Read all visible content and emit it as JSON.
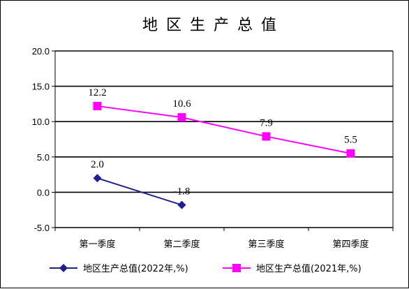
{
  "chart_data": {
    "type": "line",
    "title": "地区生产总值",
    "categories": [
      "第一季度",
      "第二季度",
      "第三季度",
      "第四季度"
    ],
    "ylim": [
      -5.0,
      20.0
    ],
    "yticks": [
      "20.0",
      "15.0",
      "10.0",
      "5.0",
      "0.0",
      "-5.0"
    ],
    "ytick_values": [
      20,
      15,
      10,
      5,
      0,
      -5
    ],
    "grid": "horizontal",
    "legend_position": "bottom",
    "series": [
      {
        "name": "地区生产总值(2022年,%)",
        "values": [
          2.0,
          -1.8,
          null,
          null
        ],
        "labels": [
          "2.0",
          "-1.8",
          "",
          ""
        ],
        "color": "#1f1f8f",
        "marker": "diamond"
      },
      {
        "name": "地区生产总值(2021年,%)",
        "values": [
          12.2,
          10.6,
          7.9,
          5.5
        ],
        "labels": [
          "12.2",
          "10.6",
          "7.9",
          "5.5"
        ],
        "color": "#ff00ff",
        "marker": "square"
      }
    ]
  }
}
